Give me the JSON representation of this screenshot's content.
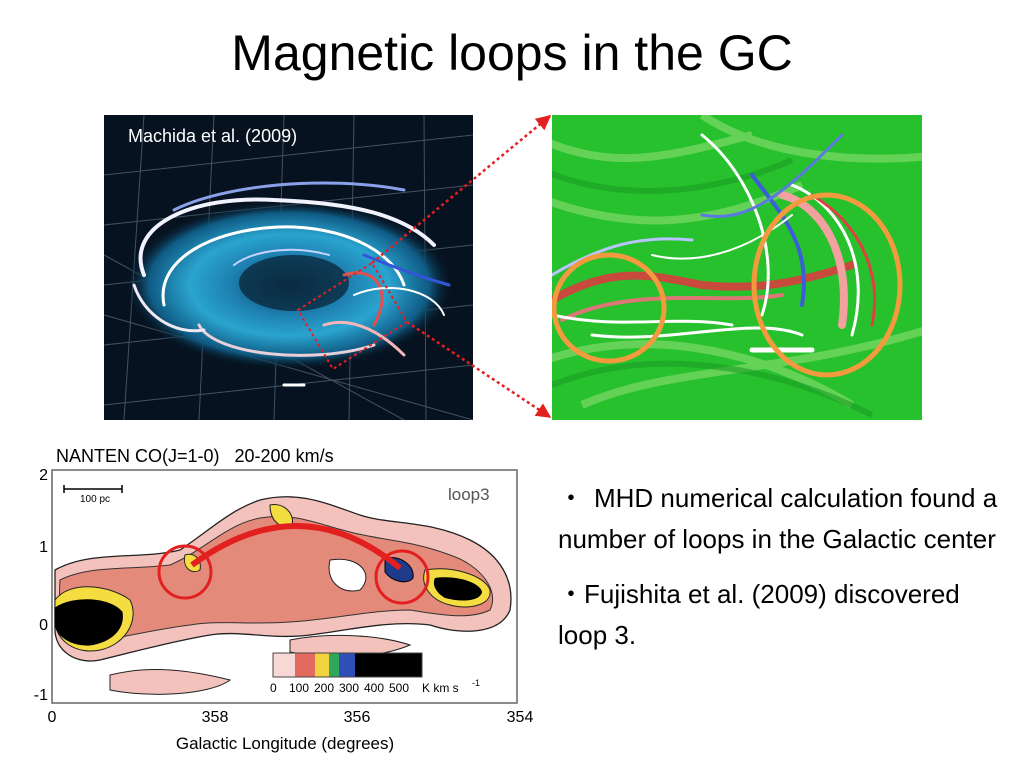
{
  "slide": {
    "title": "Magnetic loops in the GC"
  },
  "simulation": {
    "caption": "Machida et al. (2009)"
  },
  "co_map": {
    "label": "NANTEN CO(J=1-0)   20-200 km/s",
    "panel_label": "loop3",
    "scale_bar": "100 pc",
    "y_ticks": [
      "2",
      "1",
      "0",
      "-1"
    ],
    "x_ticks": [
      "0",
      "358",
      "356",
      "354"
    ],
    "x_axis_label": "Galactic Longitude (degrees)",
    "colorbar_ticks": [
      "0",
      "100",
      "200",
      "300",
      "400",
      "500"
    ],
    "colorbar_unit": "K km s",
    "colorbar_unit_exp": "-1"
  },
  "bullets": [
    {
      "mark": "・",
      "text": "MHD numerical calculation found a number of loops in the Galactic center"
    },
    {
      "mark": "・",
      "text": "Fujishita et al. (2009) discovered loop 3."
    }
  ],
  "colors": {
    "annotation": "#e32020",
    "zoom_circle": "#f39a3f",
    "sim_background": "#06121f",
    "zoom_background": "#26c12c"
  }
}
